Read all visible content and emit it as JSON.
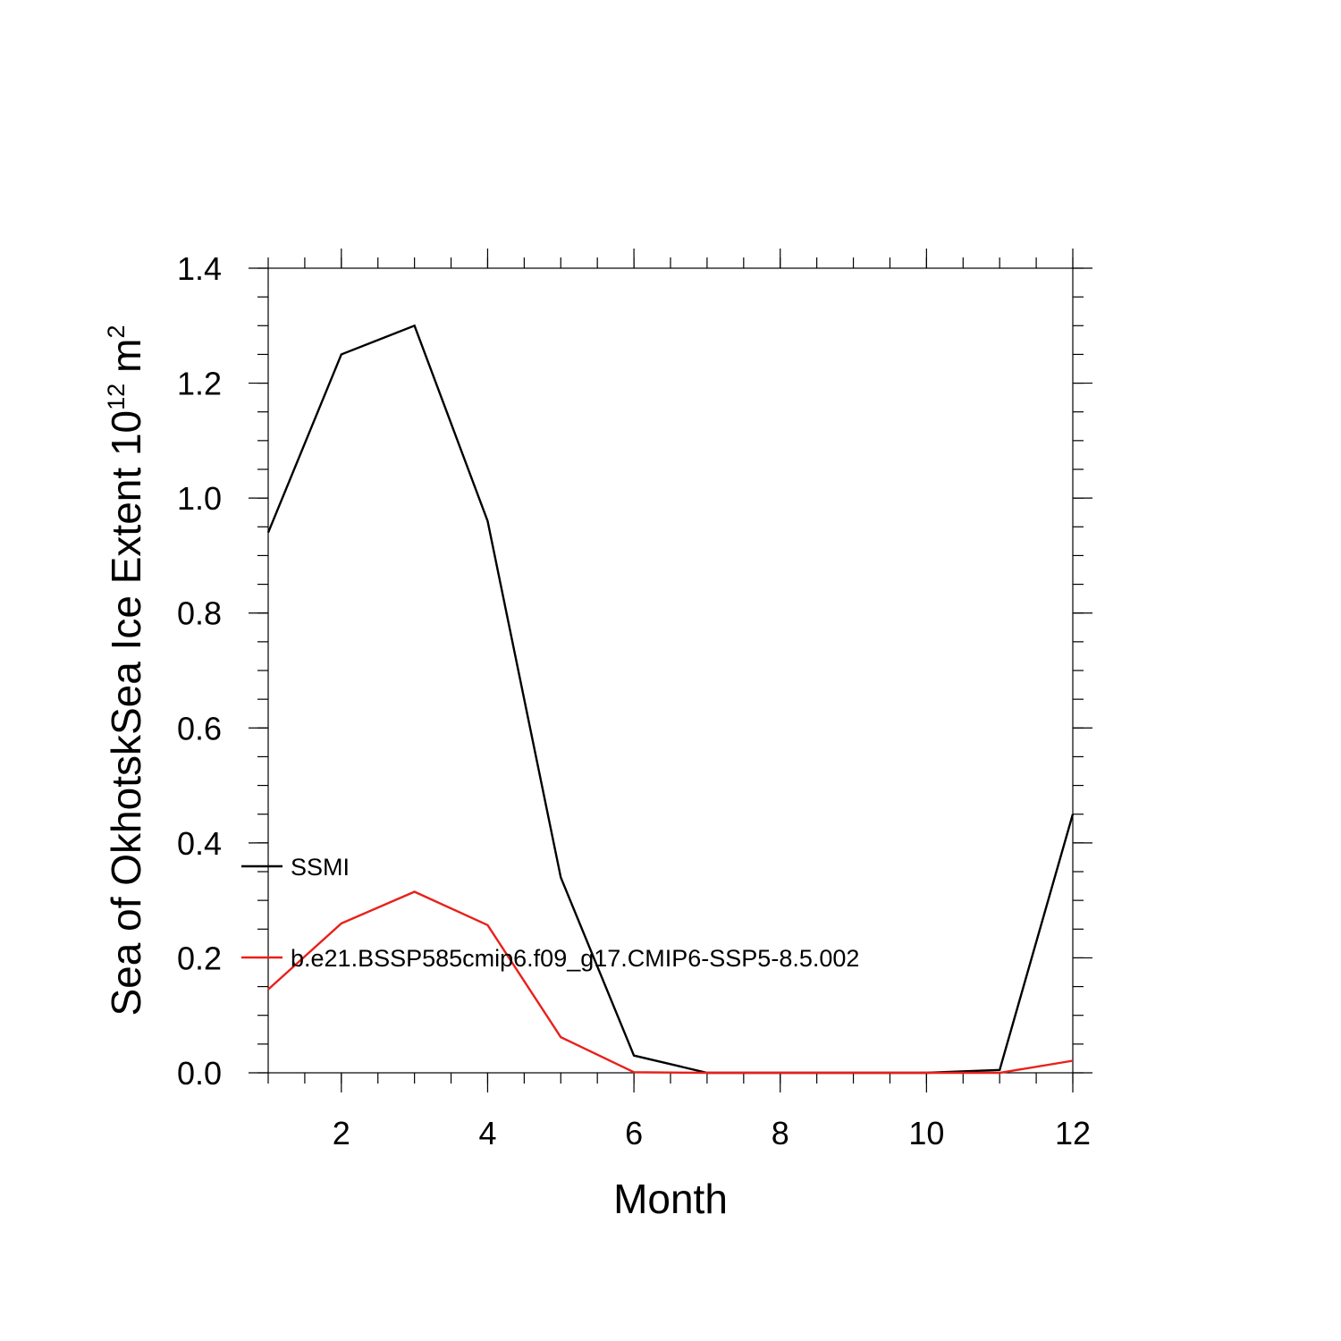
{
  "chart_data": {
    "type": "line",
    "title": "",
    "xlabel": "Month",
    "ylabel": {
      "text": "Sea of OkhotskSea Ice Extent 10",
      "superscript_exponent": "12",
      "unit": "m",
      "unit_superscript": "2"
    },
    "xlim": [
      1,
      12
    ],
    "ylim": [
      0,
      1.4
    ],
    "x_ticks": [
      2,
      4,
      6,
      8,
      10,
      12
    ],
    "y_ticks": [
      "0.0",
      "0.2",
      "0.4",
      "0.6",
      "0.8",
      "1.0",
      "1.2",
      "1.4"
    ],
    "x": [
      1,
      2,
      3,
      4,
      5,
      6,
      7,
      8,
      9,
      10,
      11,
      12
    ],
    "grid": false,
    "legend_position": "left",
    "series": [
      {
        "name": "SSMI",
        "color": "#000000",
        "values": [
          0.94,
          1.25,
          1.3,
          0.96,
          0.34,
          0.03,
          0.0,
          0.0,
          0.0,
          0.0,
          0.005,
          0.45
        ]
      },
      {
        "name": "b.e21.BSSP585cmip6.f09_g17.CMIP6-SSP5-8.5.002",
        "color": "#e8201a",
        "values": [
          0.145,
          0.26,
          0.315,
          0.257,
          0.062,
          0.001,
          0.0,
          0.0,
          0.0,
          0.0,
          0.0,
          0.021
        ]
      }
    ]
  }
}
